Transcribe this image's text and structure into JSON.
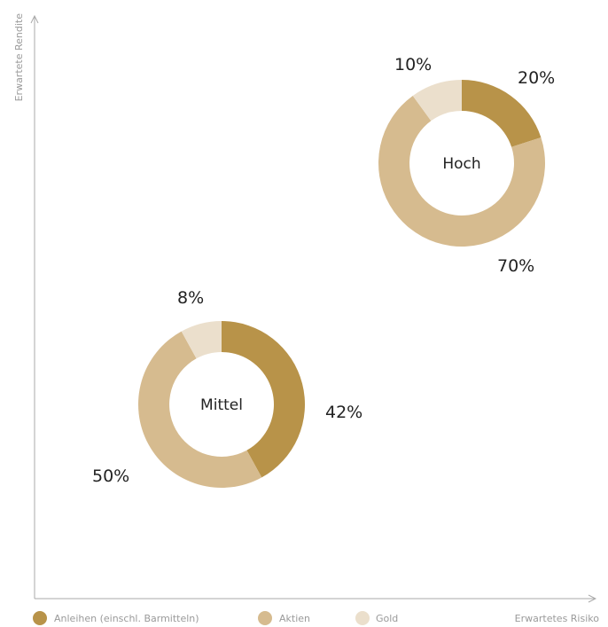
{
  "colors": {
    "anleihen": "#b89349",
    "aktien": "#d6bb8f",
    "gold": "#ebdfcc",
    "axis": "#a9a9a9",
    "axis_text": "#9a9a9a"
  },
  "chart_data": {
    "type": "donut",
    "xlabel": "Erwartetes Risiko",
    "ylabel": "Erwartete Rendite",
    "legend": [
      {
        "name": "Anleihen (einschl. Barmitteln)",
        "color": "#b89349"
      },
      {
        "name": "Aktien",
        "color": "#d6bb8f"
      },
      {
        "name": "Gold",
        "color": "#ebdfcc"
      }
    ],
    "legend_position": "bottom-left",
    "donuts": [
      {
        "name": "Mittel",
        "slices": [
          {
            "category": "Anleihen (einschl. Barmitteln)",
            "value": 42,
            "label": "42%"
          },
          {
            "category": "Aktien",
            "value": 50,
            "label": "50%"
          },
          {
            "category": "Gold",
            "value": 8,
            "label": "8%"
          }
        ]
      },
      {
        "name": "Hoch",
        "slices": [
          {
            "category": "Anleihen (einschl. Barmitteln)",
            "value": 20,
            "label": "20%"
          },
          {
            "category": "Aktien",
            "value": 70,
            "label": "70%"
          },
          {
            "category": "Gold",
            "value": 10,
            "label": "10%"
          }
        ]
      }
    ]
  }
}
